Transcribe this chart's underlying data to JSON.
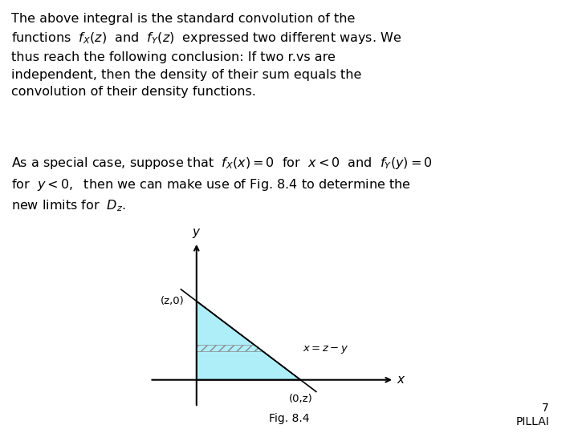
{
  "bg_color": "#ffffff",
  "text_color": "#000000",
  "paragraph1_lines": [
    "The above integral is the standard convolution of the",
    "functions  $f_X(z)$  and  $f_Y(z)$  expressed two different ways. We",
    "thus reach the following conclusion: If two r.vs are",
    "independent, then the density of their sum equals the",
    "convolution of their density functions."
  ],
  "paragraph2_lines": [
    "As a special case, suppose that  $f_X(x) = 0$  for  $x < 0$  and  $f_Y(y) = 0$",
    "for  $y < 0,$  then we can make use of Fig. 8.4 to determine the",
    "new limits for  $D_z$."
  ],
  "fig_caption": "Fig. 8.4",
  "page_number": "7",
  "page_label": "PILLAI",
  "triangle_fill_color": "#aeeef8",
  "hatch_color": "#888888",
  "line_color": "#000000",
  "axis_color": "#000000",
  "label_z0": "(z,0)",
  "label_0z": "(0,z)",
  "label_xzy": "$x = z - y$",
  "label_x": "$x$",
  "label_y": "$y$"
}
